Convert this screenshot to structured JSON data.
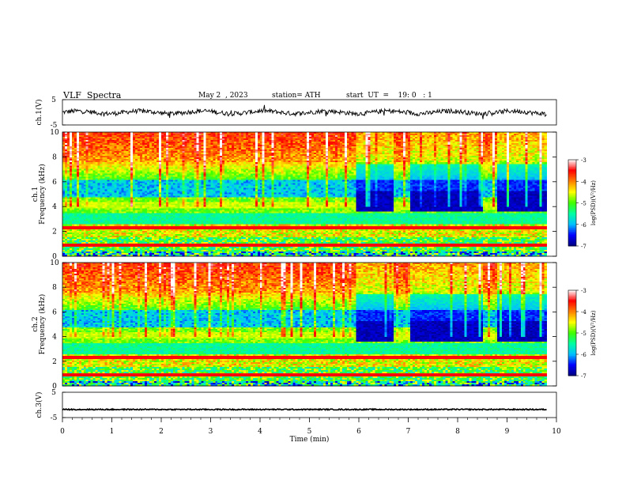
{
  "header": {
    "title": "VLF  Spectra",
    "date": "May 2  , 2023",
    "station": "station= ATH",
    "start": "start  UT  =    19: 0   : 1"
  },
  "chart_data": [
    {
      "type": "line",
      "name": "ch1-waveform",
      "ylabel": "ch.1(V)",
      "ylim": [
        -5,
        5
      ],
      "yticks": [
        "5",
        "-5"
      ],
      "x_range_min": [
        0,
        9.8
      ],
      "description_level": 0
    },
    {
      "type": "heatmap",
      "name": "ch1-spectrogram",
      "ylabel": "ch.1\nFrequency  (kHz)",
      "ylabel_lines": [
        "ch.1",
        "Frequency  (kHz)"
      ],
      "ylim": [
        0,
        10
      ],
      "yticks": [
        0,
        2,
        4,
        6,
        8,
        10
      ],
      "x_range_min": [
        0,
        9.8
      ],
      "colorbar": {
        "label": "log(PSD)(V²/Hz)",
        "range": [
          -7,
          -3
        ],
        "ticks": [
          -3,
          -4,
          -5,
          -6,
          -7
        ]
      },
      "colormap": [
        "#000080",
        "#0000ff",
        "#00c0ff",
        "#00ffa0",
        "#40ff00",
        "#ffff00",
        "#ff8000",
        "#ff0000",
        "#ffffff"
      ],
      "background_level_low": 0.3,
      "background_level_high": 0.65,
      "dark_block_start_min": 5.95,
      "band_4khz_level_before_6min": 0.55
    },
    {
      "type": "heatmap",
      "name": "ch2-spectrogram",
      "ylabel": "ch.2\nFrequency  (kHz)",
      "ylabel_lines": [
        "ch.2",
        "Frequency  (kHz)"
      ],
      "ylim": [
        0,
        10
      ],
      "yticks": [
        0,
        2,
        4,
        6,
        8,
        10
      ],
      "x_range_min": [
        0,
        9.8
      ],
      "colorbar": {
        "label": "log(PSD)(V²/Hz)",
        "range": [
          -7,
          -3
        ],
        "ticks": [
          -3,
          -4,
          -5,
          -6,
          -7
        ]
      },
      "colormap": [
        "#000080",
        "#0000ff",
        "#00c0ff",
        "#00ffa0",
        "#40ff00",
        "#ffff00",
        "#ff8000",
        "#ff0000",
        "#ffffff"
      ]
    },
    {
      "type": "line",
      "name": "ch3-waveform",
      "ylabel": "ch.3(V)",
      "ylim": [
        -5,
        5
      ],
      "yticks": [
        "5",
        "-5"
      ],
      "x_range_min": [
        0,
        9.8
      ],
      "description_level": -1.8
    }
  ],
  "x_axis": {
    "label": "Time  (min)",
    "ticks": [
      0,
      1,
      2,
      3,
      4,
      5,
      6,
      7,
      8,
      9,
      10
    ],
    "range": [
      0,
      10
    ]
  }
}
